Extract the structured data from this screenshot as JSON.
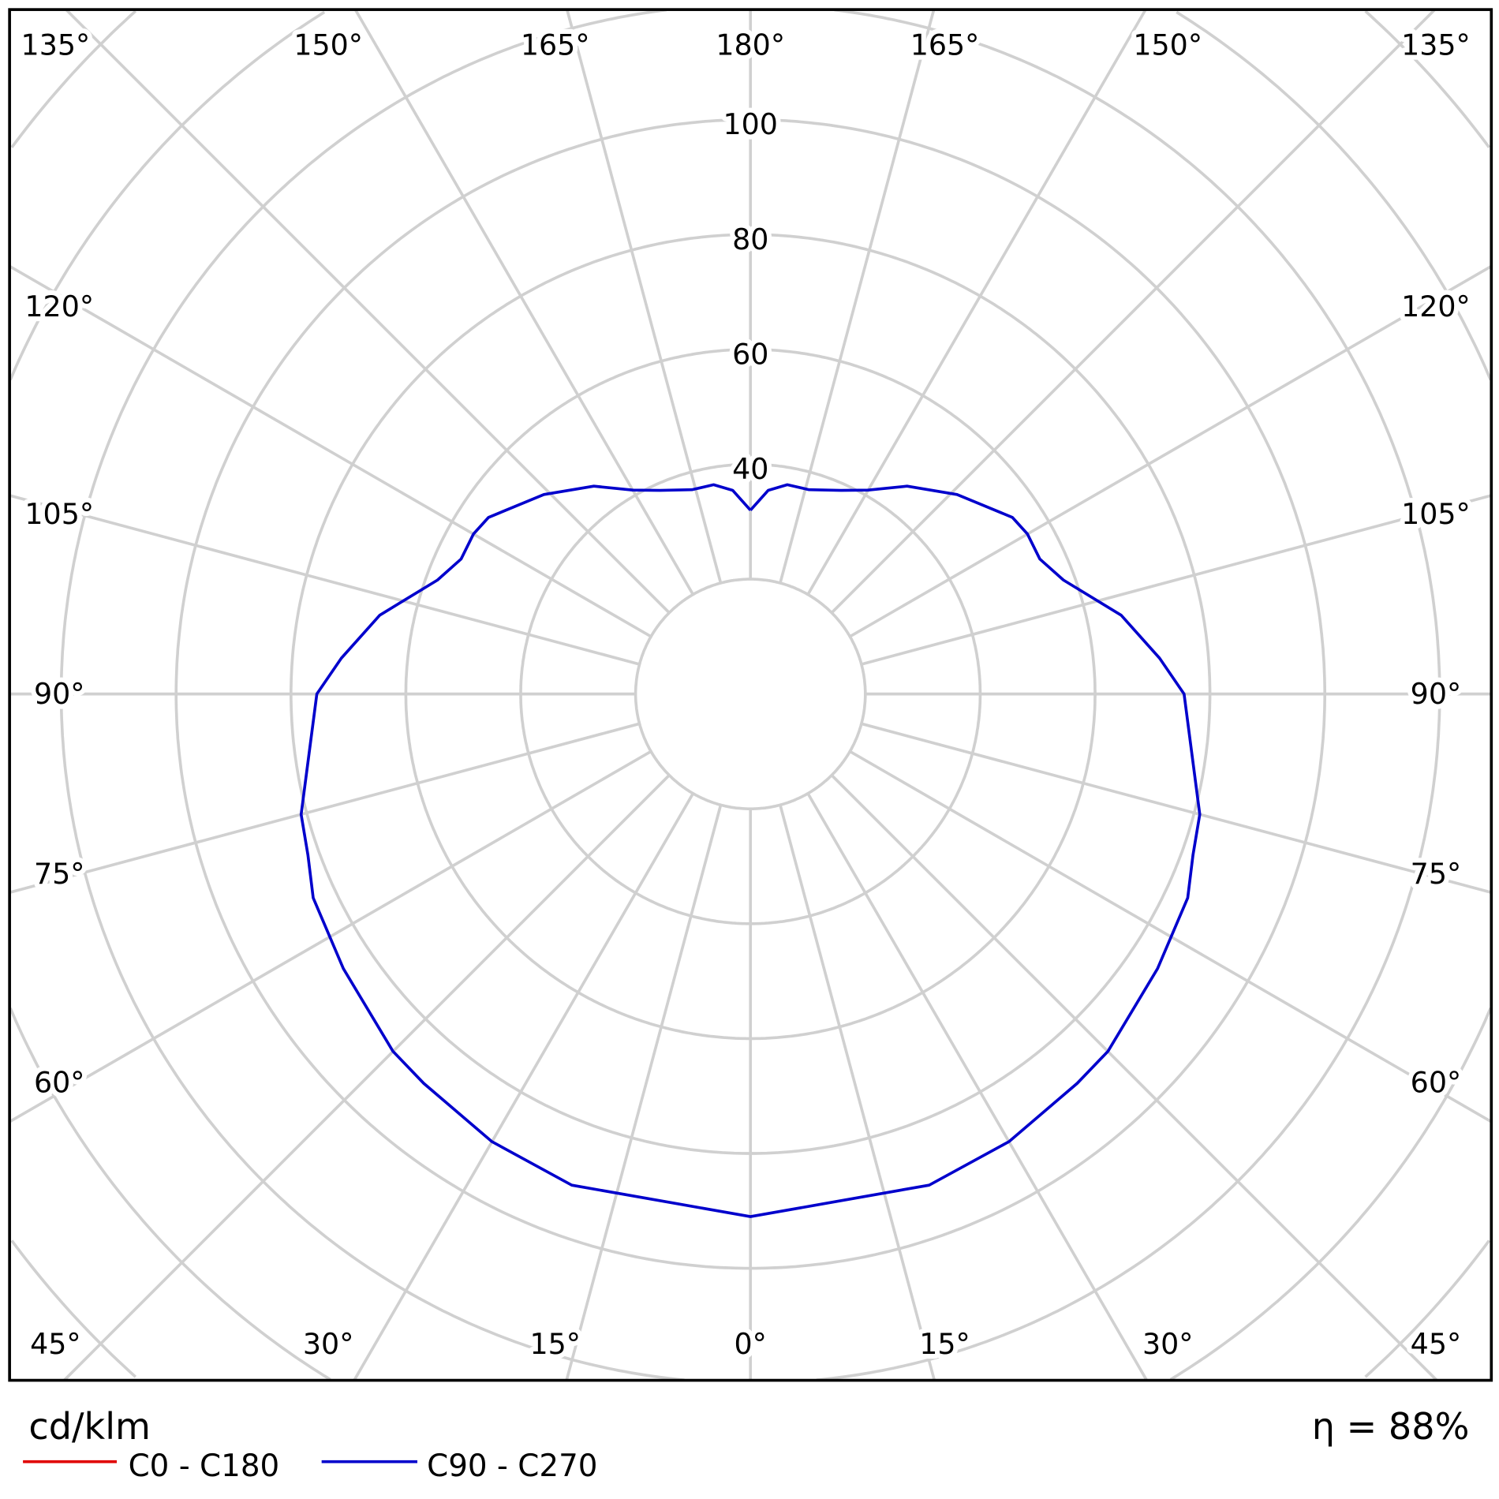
{
  "chart_data": {
    "type": "polar",
    "unit_label": "cd/klm",
    "efficiency_label": "η = 88%",
    "radial_ticks": [
      40,
      60,
      80,
      100
    ],
    "radial_range": [
      0,
      140
    ],
    "angle_labels": {
      "top": [
        "135°",
        "150°",
        "165°",
        "180°",
        "165°",
        "150°",
        "135°"
      ],
      "left": [
        "120°",
        "105°",
        "90°",
        "75°",
        "60°"
      ],
      "right": [
        "120°",
        "105°",
        "90°",
        "75°",
        "60°"
      ],
      "bottom": [
        "45°",
        "30°",
        "15°",
        "0°",
        "15°",
        "30°",
        "45°"
      ]
    },
    "grid": true,
    "series": [
      {
        "name": "C0 - C180",
        "color": "#e00000",
        "gamma": [],
        "values": []
      },
      {
        "name": "C90 - C270",
        "color": "#0000cc",
        "gamma": [
          0,
          20,
          30,
          40,
          45,
          56,
          65,
          70,
          75,
          90,
          95,
          102,
          110,
          115,
          120,
          124,
          134,
          143,
          150,
          156,
          164,
          170,
          175,
          180
        ],
        "values": [
          91,
          91,
          90,
          88.5,
          88,
          85.5,
          84,
          82,
          81,
          75.5,
          71.5,
          66,
          58,
          55.6,
          55.7,
          55,
          50,
          45.3,
          41,
          38.8,
          37,
          37,
          35.6,
          32
        ]
      }
    ],
    "legend": [
      "C0 - C180",
      "C90 - C270"
    ]
  }
}
